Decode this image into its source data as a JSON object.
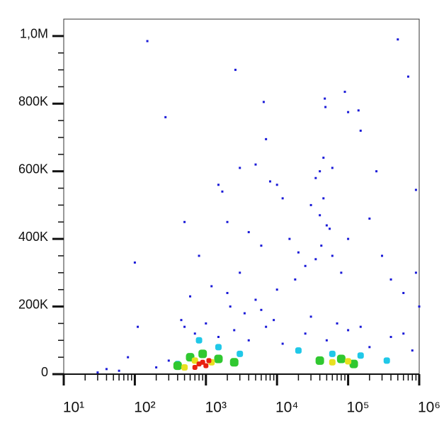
{
  "chart_data": {
    "type": "scatter",
    "xscale": "log",
    "xlim": [
      10,
      1000000
    ],
    "xticks": [
      {
        "value": 10,
        "label": "10¹"
      },
      {
        "value": 100,
        "label": "10²"
      },
      {
        "value": 1000,
        "label": "10³"
      },
      {
        "value": 10000,
        "label": "10⁴"
      },
      {
        "value": 100000,
        "label": "10⁵"
      },
      {
        "value": 1000000,
        "label": "10⁶"
      }
    ],
    "ylim": [
      0,
      1050000
    ],
    "yticks": [
      0,
      {
        "value": 200000,
        "label": "200K"
      },
      {
        "value": 400000,
        "label": "400K"
      },
      {
        "value": 600000,
        "label": "600K"
      },
      {
        "value": 800000,
        "label": "800K"
      },
      {
        "value": 1000000,
        "label": "1,0M"
      }
    ],
    "series": [
      {
        "color": "#1a1ad8",
        "x": [
          150,
          270,
          2600,
          6500,
          47000,
          48000,
          90000,
          100000,
          140000,
          500000,
          700000,
          900000,
          100,
          110,
          150000,
          7000,
          45000,
          40000,
          60000,
          35000,
          30000,
          40000,
          45000,
          50000,
          55000,
          42000,
          35000,
          25000,
          60000,
          80000,
          1500,
          1700,
          3000,
          5000,
          8000,
          10000,
          12000,
          2000,
          4000,
          6000,
          15000,
          20000,
          3000,
          1200,
          2000,
          5000,
          10000,
          18000,
          100000,
          200000,
          300000,
          400000,
          600000,
          900000,
          1000000,
          250000,
          500,
          800,
          600,
          450,
          500,
          700,
          1000,
          1500,
          2500,
          4000,
          7000,
          12000,
          25000,
          50000,
          100000,
          200000,
          400000,
          800000,
          300,
          200,
          80,
          60,
          30,
          40,
          3500,
          9000,
          30000,
          70000,
          150000,
          600000,
          2200,
          6000
        ],
        "values": [
          985000,
          760000,
          900000,
          805000,
          815000,
          790000,
          835000,
          775000,
          780000,
          990000,
          880000,
          545000,
          330000,
          140000,
          720000,
          695000,
          640000,
          600000,
          610000,
          580000,
          500000,
          470000,
          520000,
          440000,
          430000,
          380000,
          340000,
          320000,
          350000,
          300000,
          560000,
          540000,
          610000,
          620000,
          570000,
          560000,
          520000,
          450000,
          420000,
          380000,
          400000,
          360000,
          300000,
          260000,
          240000,
          220000,
          250000,
          280000,
          400000,
          460000,
          350000,
          280000,
          240000,
          300000,
          200000,
          600000,
          450000,
          350000,
          230000,
          160000,
          140000,
          120000,
          150000,
          110000,
          130000,
          100000,
          140000,
          90000,
          120000,
          100000,
          130000,
          80000,
          110000,
          70000,
          40000,
          20000,
          50000,
          10000,
          5000,
          15000,
          180000,
          160000,
          170000,
          150000,
          140000,
          120000,
          200000,
          190000
        ]
      },
      {
        "color": "#20c8e8",
        "x": [
          800,
          1500,
          3000,
          20000,
          60000,
          150000,
          400,
          350000
        ],
        "values": [
          100000,
          80000,
          60000,
          70000,
          60000,
          55000,
          30000,
          40000
        ]
      },
      {
        "color": "#30c830",
        "x": [
          600,
          900,
          1500,
          2500,
          40000,
          80000,
          120000,
          400
        ],
        "values": [
          50000,
          60000,
          45000,
          35000,
          40000,
          45000,
          30000,
          25000
        ]
      },
      {
        "color": "#e8e020",
        "x": [
          700,
          1200,
          60000,
          100000,
          500
        ],
        "values": [
          40000,
          35000,
          35000,
          38000,
          20000
        ]
      },
      {
        "color": "#e82010",
        "x": [
          800,
          1000,
          900,
          700,
          1100
        ],
        "values": [
          30000,
          25000,
          35000,
          20000,
          40000
        ]
      }
    ]
  }
}
